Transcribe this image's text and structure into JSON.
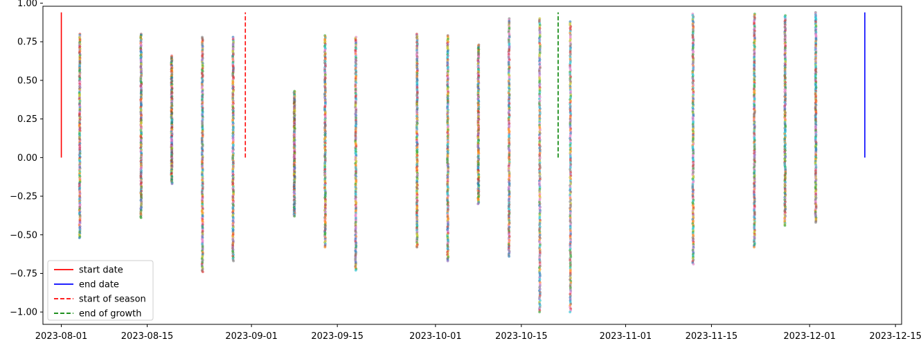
{
  "chart_data": {
    "type": "scatter",
    "title": "",
    "xlabel": "",
    "ylabel": "",
    "x_axis_type": "date",
    "xlim": [
      "2023-07-29",
      "2023-12-16"
    ],
    "ylim": [
      -1.08,
      0.98
    ],
    "grid": false,
    "legend_position": "lower left",
    "x_ticks": [
      "2023-08-01",
      "2023-08-15",
      "2023-09-01",
      "2023-09-15",
      "2023-10-01",
      "2023-10-15",
      "2023-11-01",
      "2023-11-15",
      "2023-12-01",
      "2023-12-15"
    ],
    "y_ticks": [
      -1.0,
      -0.75,
      -0.5,
      -0.25,
      0.0,
      0.25,
      0.5,
      0.75,
      1.0
    ],
    "y_tick_labels": [
      "−1.00",
      "−0.75",
      "−0.50",
      "−0.25",
      "0.00",
      "0.25",
      "0.50",
      "0.75",
      "1.00"
    ],
    "point_colors": [
      "#1f77b4",
      "#ff7f0e",
      "#2ca02c",
      "#d62728",
      "#9467bd",
      "#8c564b",
      "#e377c2",
      "#7f7f7f",
      "#bcbd22",
      "#17becf"
    ],
    "observation_dates": [
      {
        "date": "2023-08-04",
        "y_min": -0.52,
        "y_max": 0.8
      },
      {
        "date": "2023-08-14",
        "y_min": -0.39,
        "y_max": 0.8
      },
      {
        "date": "2023-08-19",
        "y_min": -0.17,
        "y_max": 0.66
      },
      {
        "date": "2023-08-24",
        "y_min": -0.74,
        "y_max": 0.78
      },
      {
        "date": "2023-08-29",
        "y_min": -0.67,
        "y_max": 0.78
      },
      {
        "date": "2023-09-08",
        "y_min": -0.38,
        "y_max": 0.43
      },
      {
        "date": "2023-09-13",
        "y_min": -0.58,
        "y_max": 0.79
      },
      {
        "date": "2023-09-18",
        "y_min": -0.73,
        "y_max": 0.78
      },
      {
        "date": "2023-09-28",
        "y_min": -0.58,
        "y_max": 0.8
      },
      {
        "date": "2023-10-03",
        "y_min": -0.67,
        "y_max": 0.79
      },
      {
        "date": "2023-10-08",
        "y_min": -0.3,
        "y_max": 0.73
      },
      {
        "date": "2023-10-13",
        "y_min": -0.64,
        "y_max": 0.9
      },
      {
        "date": "2023-10-18",
        "y_min": -1.0,
        "y_max": 0.9
      },
      {
        "date": "2023-10-23",
        "y_min": -1.0,
        "y_max": 0.88
      },
      {
        "date": "2023-11-12",
        "y_min": -0.69,
        "y_max": 0.93
      },
      {
        "date": "2023-11-22",
        "y_min": -0.58,
        "y_max": 0.93
      },
      {
        "date": "2023-11-27",
        "y_min": -0.44,
        "y_max": 0.92
      },
      {
        "date": "2023-12-02",
        "y_min": -0.42,
        "y_max": 0.94
      }
    ],
    "markers": [
      {
        "name": "start date",
        "date": "2023-08-01",
        "y_from": 0.0,
        "y_to": 0.94,
        "color": "#ff0000",
        "style": "solid"
      },
      {
        "name": "end date",
        "date": "2023-12-10",
        "y_from": 0.0,
        "y_to": 0.94,
        "color": "#0000ff",
        "style": "solid"
      },
      {
        "name": "start of season",
        "date": "2023-08-31",
        "y_from": 0.0,
        "y_to": 0.94,
        "color": "#ff0000",
        "style": "dashed"
      },
      {
        "name": "end of growth",
        "date": "2023-10-21",
        "y_from": 0.0,
        "y_to": 0.94,
        "color": "#008000",
        "style": "dashed"
      }
    ]
  }
}
